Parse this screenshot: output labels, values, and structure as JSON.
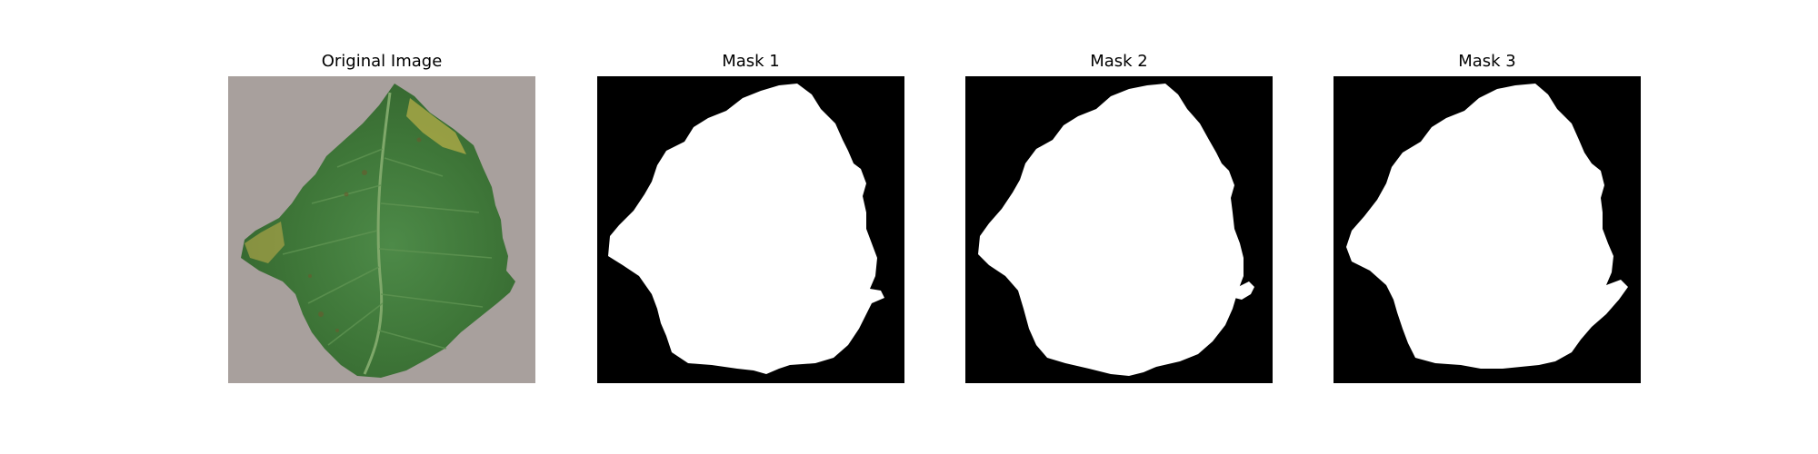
{
  "figure": {
    "panels": [
      {
        "title": "Original Image",
        "kind": "photo"
      },
      {
        "title": "Mask 1",
        "kind": "mask"
      },
      {
        "title": "Mask 2",
        "kind": "mask"
      },
      {
        "title": "Mask 3",
        "kind": "mask"
      }
    ],
    "colors": {
      "background": "#a8a09d",
      "leaf": "#3f7a3c",
      "leaf_yellow": "#b8b04a",
      "mask_bg": "#000000",
      "mask_fg": "#ffffff"
    }
  }
}
